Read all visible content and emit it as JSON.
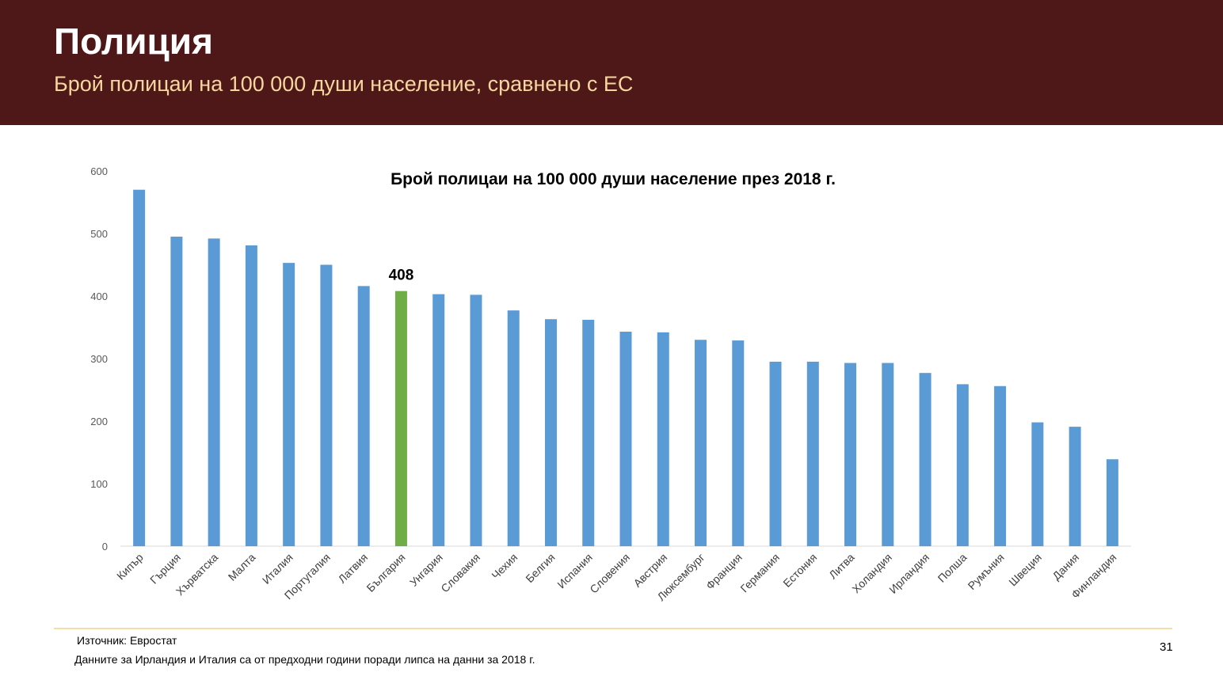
{
  "header": {
    "title": "Полиция",
    "subtitle": "Брой полицаи на 100 000 души население, сравнено с ЕС"
  },
  "colors": {
    "header_bg": "#4e1818",
    "title": "#ffffff",
    "subtitle": "#f7d79e",
    "bar": "#5b9bd5",
    "highlight_bar": "#70ad47",
    "divider": "#f1dfa6"
  },
  "chart_data": {
    "type": "bar",
    "title": "Брой полицаи на 100 000 души население през 2018 г.",
    "xlabel": "",
    "ylabel": "",
    "ylim": [
      0,
      600
    ],
    "yticks": [
      0,
      100,
      200,
      300,
      400,
      500,
      600
    ],
    "grid": false,
    "categories": [
      "Кипър",
      "Гърция",
      "Хърватска",
      "Малта",
      "Италия",
      "Португалия",
      "Латвия",
      "България",
      "Унгария",
      "Словакия",
      "Чехия",
      "Белгия",
      "Испания",
      "Словения",
      "Австрия",
      "Люксембург",
      "Франция",
      "Германия",
      "Естония",
      "Литва",
      "Холандия",
      "Ирландия",
      "Полша",
      "Румъния",
      "Швеция",
      "Дания",
      "Финландия"
    ],
    "values": [
      570,
      495,
      492,
      481,
      453,
      450,
      416,
      408,
      403,
      402,
      377,
      363,
      362,
      343,
      342,
      330,
      329,
      295,
      295,
      293,
      293,
      277,
      259,
      256,
      198,
      191,
      139
    ],
    "highlight": {
      "category": "България",
      "label": "408"
    }
  },
  "footer": {
    "source": "Източник: Евростат",
    "note": "Данните за Ирландия и Италия са от предходни години поради липса на данни за 2018 г.",
    "page_number": "31"
  }
}
